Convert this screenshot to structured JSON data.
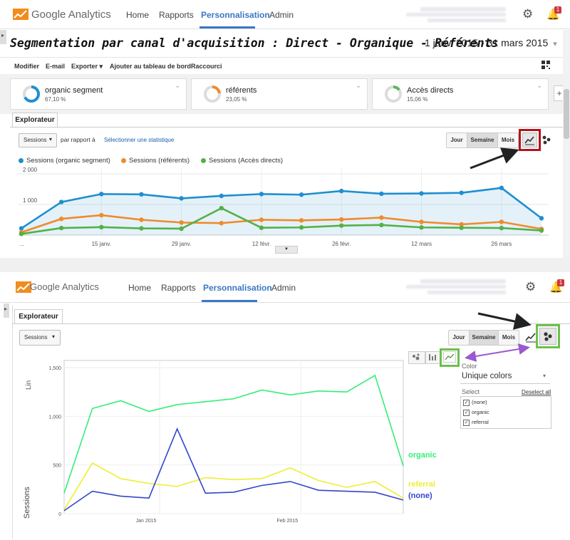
{
  "header": {
    "brand": "Google Analytics",
    "nav": [
      "Home",
      "Rapports",
      "Personnalisation",
      "Admin"
    ],
    "active_nav": "Personnalisation",
    "notification_count": "1"
  },
  "report": {
    "title": "Segmentation par canal d'acquisition : Direct - Organique  - Référents",
    "date_range": "1 janv. 2015 - 31 mars 2015",
    "toolbar": [
      "Modifier",
      "E-mail",
      "Exporter ▾",
      "Ajouter au tableau de bord",
      "Raccourci"
    ],
    "segments": [
      {
        "name": "organic segment",
        "pct": "67,10 %",
        "color": "#1f8fcf",
        "fraction": 0.671
      },
      {
        "name": "référents",
        "pct": "23,05 %",
        "color": "#f08a2c",
        "fraction": 0.2305
      },
      {
        "name": "Accès directs",
        "pct": "15,06 %",
        "color": "#5cb85c",
        "fraction": 0.1506
      }
    ],
    "add_segment": "+",
    "tab": "Explorateur",
    "metric_select": "Sessions",
    "compare_text": "par rapport à",
    "select_metric_link": "Sélectionner une statistique",
    "granularity": [
      "Jour",
      "Semaine",
      "Mois"
    ],
    "selected_granularity": "Semaine",
    "ellipsis": "..."
  },
  "motion": {
    "tab": "Explorateur",
    "metric_select": "Sessions",
    "granularity": [
      "Jour",
      "Semaine",
      "Mois"
    ],
    "selected_granularity": "Semaine",
    "scale_label": "Lin",
    "y_label": "Sessions",
    "color_label": "Color",
    "color_value": "Unique colors",
    "select_label": "Select",
    "deselect_all": "Deselect all",
    "checklist": [
      "(none)",
      "organic",
      "referral"
    ]
  },
  "chart_data": [
    {
      "type": "line",
      "x": [
        "1 janv.",
        "8 janv.",
        "15 janv.",
        "22 janv.",
        "29 janv.",
        "5 févr.",
        "12 févr.",
        "19 févr.",
        "26 févr.",
        "5 mars",
        "12 mars",
        "19 mars",
        "26 mars",
        "31 mars"
      ],
      "xticks": [
        "...",
        "15 janv.",
        "29 janv.",
        "12 févr.",
        "26 févr.",
        "12 mars",
        "26 mars"
      ],
      "yticks": [
        "2 000",
        "1 000"
      ],
      "ylim": [
        0,
        2000
      ],
      "series": [
        {
          "name": "Sessions (organic segment)",
          "color": "#1f8fcf",
          "values": [
            220,
            1080,
            1340,
            1330,
            1200,
            1280,
            1340,
            1320,
            1440,
            1350,
            1360,
            1380,
            1540,
            550
          ]
        },
        {
          "name": "Sessions (référents)",
          "color": "#f08a2c",
          "values": [
            90,
            530,
            650,
            500,
            410,
            390,
            500,
            480,
            510,
            570,
            430,
            350,
            430,
            200
          ]
        },
        {
          "name": "Sessions (Accès directs)",
          "color": "#55b047",
          "values": [
            40,
            230,
            260,
            220,
            210,
            880,
            240,
            250,
            310,
            330,
            250,
            240,
            230,
            150
          ]
        }
      ],
      "grid": true,
      "legend": "top-left"
    },
    {
      "type": "line",
      "xticks": [
        "Jan 2015",
        "Feb 2015"
      ],
      "yticks": [
        "1,500",
        "1,000",
        "500",
        "0"
      ],
      "ylabel": "Sessions",
      "ylim": [
        0,
        1500
      ],
      "series": [
        {
          "name": "organic",
          "color": "#33ee77",
          "values": [
            210,
            1080,
            1160,
            1050,
            1120,
            1150,
            1180,
            1270,
            1220,
            1260,
            1250,
            1420,
            490
          ]
        },
        {
          "name": "referral",
          "color": "#eeee33",
          "values": [
            40,
            520,
            360,
            310,
            280,
            370,
            350,
            360,
            470,
            340,
            270,
            330,
            160
          ]
        },
        {
          "name": "(none)",
          "color": "#3344cc",
          "values": [
            30,
            230,
            180,
            160,
            870,
            210,
            220,
            290,
            330,
            240,
            230,
            220,
            140
          ]
        }
      ],
      "grid": true,
      "legend": "right"
    }
  ]
}
